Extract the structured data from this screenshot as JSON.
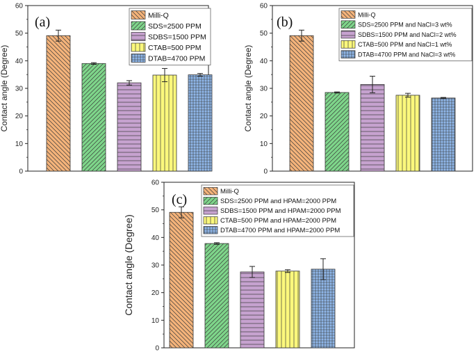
{
  "chart_data": [
    {
      "type": "bar",
      "panel_label": "(a)",
      "ylabel": "Contact angle (Degree)",
      "xlabel": "",
      "ylim": [
        0,
        60
      ],
      "yticks": [
        0,
        10,
        20,
        30,
        40,
        50,
        60
      ],
      "legend_position": "top-right",
      "series": [
        {
          "name": "Milli-Q",
          "value": 49.1,
          "error": 2.0,
          "color": "#f4b37a",
          "pattern": "diag-down"
        },
        {
          "name": "SDS=2500 PPM",
          "value": 39.0,
          "error": 0.3,
          "color": "#7ed58a",
          "pattern": "diag-up"
        },
        {
          "name": "SDBS=1500 PPM",
          "value": 32.0,
          "error": 0.8,
          "color": "#c6a2cf",
          "pattern": "horizontal"
        },
        {
          "name": "CTAB=500 PPM",
          "value": 34.8,
          "error": 2.4,
          "color": "#fbf87c",
          "pattern": "vertical"
        },
        {
          "name": "DTAB=4700 PPM",
          "value": 34.9,
          "error": 0.5,
          "color": "#8fb7ea",
          "pattern": "grid"
        }
      ]
    },
    {
      "type": "bar",
      "panel_label": "(b)",
      "ylabel": "Contact angle (Degree)",
      "xlabel": "",
      "ylim": [
        0,
        60
      ],
      "yticks": [
        0,
        10,
        20,
        30,
        40,
        50,
        60
      ],
      "legend_position": "top-right",
      "series": [
        {
          "name": "Milli-Q",
          "value": 49.1,
          "error": 2.0,
          "color": "#f4b37a",
          "pattern": "diag-down"
        },
        {
          "name": "SDS=2500 PPM and NaCl=3 wt%",
          "value": 28.5,
          "error": 0.2,
          "color": "#7ed58a",
          "pattern": "diag-up"
        },
        {
          "name": "SDBS=1500 PPM and NaCl=2 wt%",
          "value": 31.4,
          "error": 3.0,
          "color": "#c6a2cf",
          "pattern": "horizontal"
        },
        {
          "name": "CTAB=500 PPM and NaCl=1 wt%",
          "value": 27.5,
          "error": 0.7,
          "color": "#fbf87c",
          "pattern": "vertical"
        },
        {
          "name": "DTAB=4700 PPM and NaCl=3 wt%",
          "value": 26.5,
          "error": 0.2,
          "color": "#8fb7ea",
          "pattern": "grid"
        }
      ]
    },
    {
      "type": "bar",
      "panel_label": "(c)",
      "ylabel": "Contact angle (Degree)",
      "xlabel": "",
      "ylim": [
        0,
        60
      ],
      "yticks": [
        0,
        10,
        20,
        30,
        40,
        50,
        60
      ],
      "legend_position": "top-right",
      "series": [
        {
          "name": "Milli-Q",
          "value": 49.1,
          "error": 2.0,
          "color": "#f4b37a",
          "pattern": "diag-down"
        },
        {
          "name": "SDS=2500 PPM and HPAM=2000 PPM",
          "value": 37.8,
          "error": 0.3,
          "color": "#7ed58a",
          "pattern": "diag-up"
        },
        {
          "name": "SDBS=1500 PPM and HPAM=2000 PPM",
          "value": 27.5,
          "error": 2.0,
          "color": "#c6a2cf",
          "pattern": "horizontal"
        },
        {
          "name": "CTAB=500 PPM and HPAM=2000 PPM",
          "value": 27.8,
          "error": 0.5,
          "color": "#fbf87c",
          "pattern": "vertical"
        },
        {
          "name": "DTAB=4700 PPM and HPAM=2000 PPM",
          "value": 28.5,
          "error": 3.8,
          "color": "#8fb7ea",
          "pattern": "grid"
        }
      ]
    }
  ]
}
